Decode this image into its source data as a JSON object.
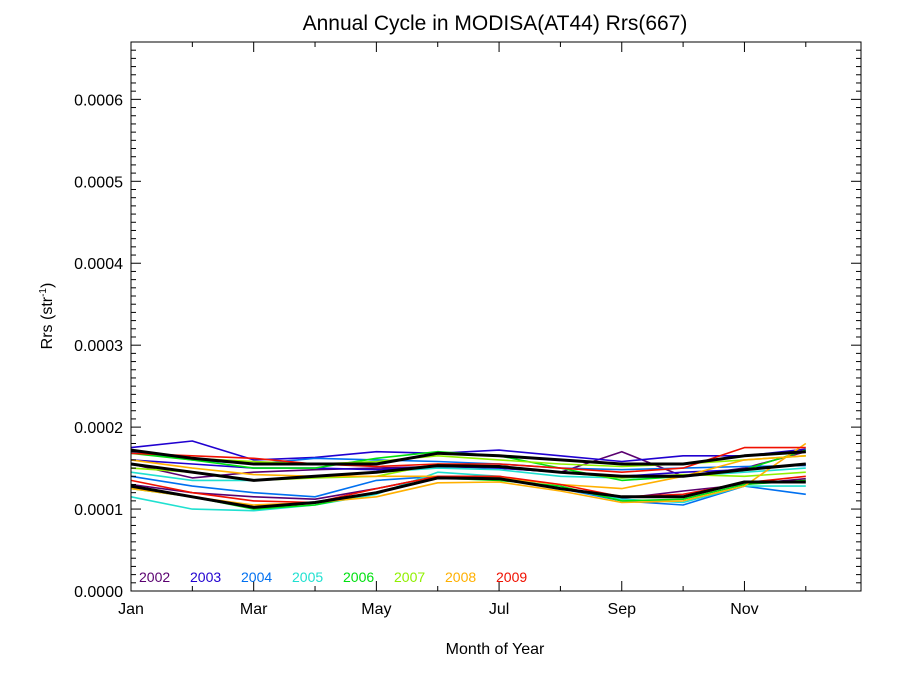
{
  "chart_data": {
    "type": "line",
    "title": "Annual Cycle in MODISA(AT44) Rrs(667)",
    "xlabel": "Month of Year",
    "ylabel": "Rrs (str",
    "ylabel_sup": "-1",
    "ylabel_suffix": ")",
    "xlim": [
      1,
      12.9
    ],
    "ylim": [
      0.0,
      0.00067
    ],
    "x_ticks": [
      {
        "value": 1,
        "label": "Jan"
      },
      {
        "value": 3,
        "label": "Mar"
      },
      {
        "value": 5,
        "label": "May"
      },
      {
        "value": 7,
        "label": "Jul"
      },
      {
        "value": 9,
        "label": "Sep"
      },
      {
        "value": 11,
        "label": "Nov"
      }
    ],
    "y_ticks": [
      {
        "value": 0.0,
        "label": "0.0000"
      },
      {
        "value": 0.0001,
        "label": "0.0001"
      },
      {
        "value": 0.0002,
        "label": "0.0002"
      },
      {
        "value": 0.0003,
        "label": "0.0003"
      },
      {
        "value": 0.0004,
        "label": "0.0004"
      },
      {
        "value": 0.0005,
        "label": "0.0005"
      },
      {
        "value": 0.0006,
        "label": "0.0006"
      }
    ],
    "legend_position": "bottom-left",
    "x": [
      1,
      2,
      3,
      4,
      5,
      6,
      7,
      8,
      9,
      10,
      11,
      12
    ],
    "series": [
      {
        "name": "2002",
        "color": "#5a0070",
        "values": [
          0.000155,
          0.000138,
          0.000145,
          0.000148,
          0.00015,
          0.000152,
          0.00015,
          0.000145,
          0.00017,
          0.00014,
          0.00015,
          0.00017
        ]
      },
      {
        "name": "2002",
        "color": "#5a0070",
        "values": [
          0.00013,
          0.00012,
          0.000115,
          0.000112,
          0.000125,
          0.00014,
          0.000138,
          0.000125,
          0.000113,
          0.000122,
          0.00013,
          0.000137
        ]
      },
      {
        "name": "2003",
        "color": "#2000d0",
        "values": [
          0.000175,
          0.000183,
          0.00016,
          0.000163,
          0.00017,
          0.000168,
          0.000172,
          0.000165,
          0.000158,
          0.000165,
          0.000165,
          0.000173
        ]
      },
      {
        "name": "2003",
        "color": "#2000d0",
        "values": [
          0.00016,
          0.000155,
          0.00015,
          0.00015,
          0.000148,
          0.000152,
          0.00015,
          0.000145,
          0.00014,
          0.000145,
          0.000148,
          0.000155
        ]
      },
      {
        "name": "2004",
        "color": "#0070f0",
        "values": [
          0.00014,
          0.000128,
          0.00012,
          0.000115,
          0.000135,
          0.00014,
          0.00014,
          0.000125,
          0.00011,
          0.000105,
          0.000128,
          0.000118
        ]
      },
      {
        "name": "2004",
        "color": "#0070f0",
        "values": [
          0.00017,
          0.00016,
          0.000155,
          0.000162,
          0.00016,
          0.000158,
          0.000155,
          0.00015,
          0.000148,
          0.00015,
          0.000152,
          0.000153
        ]
      },
      {
        "name": "2005",
        "color": "#20e0d0",
        "values": [
          0.000115,
          0.0001,
          9.8e-05,
          0.000105,
          0.000118,
          0.000145,
          0.00014,
          0.000125,
          0.000112,
          0.000108,
          0.000128,
          0.000128
        ]
      },
      {
        "name": "2005",
        "color": "#20e0d0",
        "values": [
          0.000145,
          0.000135,
          0.000135,
          0.00014,
          0.000145,
          0.00015,
          0.000148,
          0.00014,
          0.000138,
          0.00014,
          0.000145,
          0.00015
        ]
      },
      {
        "name": "2006",
        "color": "#00e010",
        "values": [
          0.000125,
          0.000115,
          0.0001,
          0.000105,
          0.00012,
          0.000138,
          0.000135,
          0.000128,
          0.00011,
          0.000112,
          0.00013,
          0.000135
        ]
      },
      {
        "name": "2006",
        "color": "#00e010",
        "values": [
          0.000168,
          0.00016,
          0.00015,
          0.00015,
          0.000162,
          0.00017,
          0.000165,
          0.00015,
          0.000135,
          0.00014,
          0.000148,
          0.000172
        ]
      },
      {
        "name": "2007",
        "color": "#90f000",
        "values": [
          0.00015,
          0.000145,
          0.000135,
          0.000138,
          0.00014,
          0.000155,
          0.000152,
          0.000145,
          0.000138,
          0.000142,
          0.00014,
          0.000145
        ]
      },
      {
        "name": "2007",
        "color": "#90f000",
        "values": [
          0.000172,
          0.000162,
          0.000158,
          0.000155,
          0.000158,
          0.000165,
          0.00016,
          0.000155,
          0.000152,
          0.000155,
          0.00016,
          0.000165
        ]
      },
      {
        "name": "2008",
        "color": "#ffb000",
        "values": [
          0.000125,
          0.000115,
          0.000105,
          0.000108,
          0.000115,
          0.000132,
          0.000133,
          0.000122,
          0.000108,
          0.00011,
          0.000128,
          0.00018
        ]
      },
      {
        "name": "2008",
        "color": "#ffb000",
        "values": [
          0.00016,
          0.00015,
          0.000142,
          0.00014,
          0.00014,
          0.00014,
          0.000138,
          0.00013,
          0.000125,
          0.00014,
          0.00016,
          0.000165
        ]
      },
      {
        "name": "2009",
        "color": "#f01000",
        "values": [
          0.000135,
          0.00012,
          0.00011,
          0.000108,
          0.000125,
          0.00014,
          0.00014,
          0.00013,
          0.000115,
          0.000118,
          0.000132,
          0.00014
        ]
      },
      {
        "name": "2009",
        "color": "#f01000",
        "values": [
          0.000168,
          0.000165,
          0.000162,
          0.000155,
          0.000152,
          0.000155,
          0.000155,
          0.00015,
          0.000145,
          0.00015,
          0.000175,
          0.000175
        ]
      },
      {
        "name": "",
        "color": "#000000",
        "bold": true,
        "values": [
          0.000172,
          0.000162,
          0.000155,
          0.000155,
          0.000155,
          0.000168,
          0.000165,
          0.00016,
          0.000155,
          0.000155,
          0.000165,
          0.00017
        ]
      },
      {
        "name": "",
        "color": "#000000",
        "bold": true,
        "values": [
          0.000155,
          0.000145,
          0.000135,
          0.00014,
          0.000145,
          0.000153,
          0.000152,
          0.000145,
          0.00014,
          0.00014,
          0.000148,
          0.000155
        ]
      },
      {
        "name": "",
        "color": "#000000",
        "bold": true,
        "values": [
          0.000128,
          0.000115,
          0.000102,
          0.000108,
          0.00012,
          0.000138,
          0.000137,
          0.000125,
          0.000115,
          0.000115,
          0.000133,
          0.000133
        ]
      }
    ],
    "legend": [
      {
        "label": "2002",
        "color": "#5a0070"
      },
      {
        "label": "2003",
        "color": "#2000d0"
      },
      {
        "label": "2004",
        "color": "#0070f0"
      },
      {
        "label": "2005",
        "color": "#20e0d0"
      },
      {
        "label": "2006",
        "color": "#00e010"
      },
      {
        "label": "2007",
        "color": "#90f000"
      },
      {
        "label": "2008",
        "color": "#ffb000"
      },
      {
        "label": "2009",
        "color": "#f01000"
      }
    ]
  }
}
